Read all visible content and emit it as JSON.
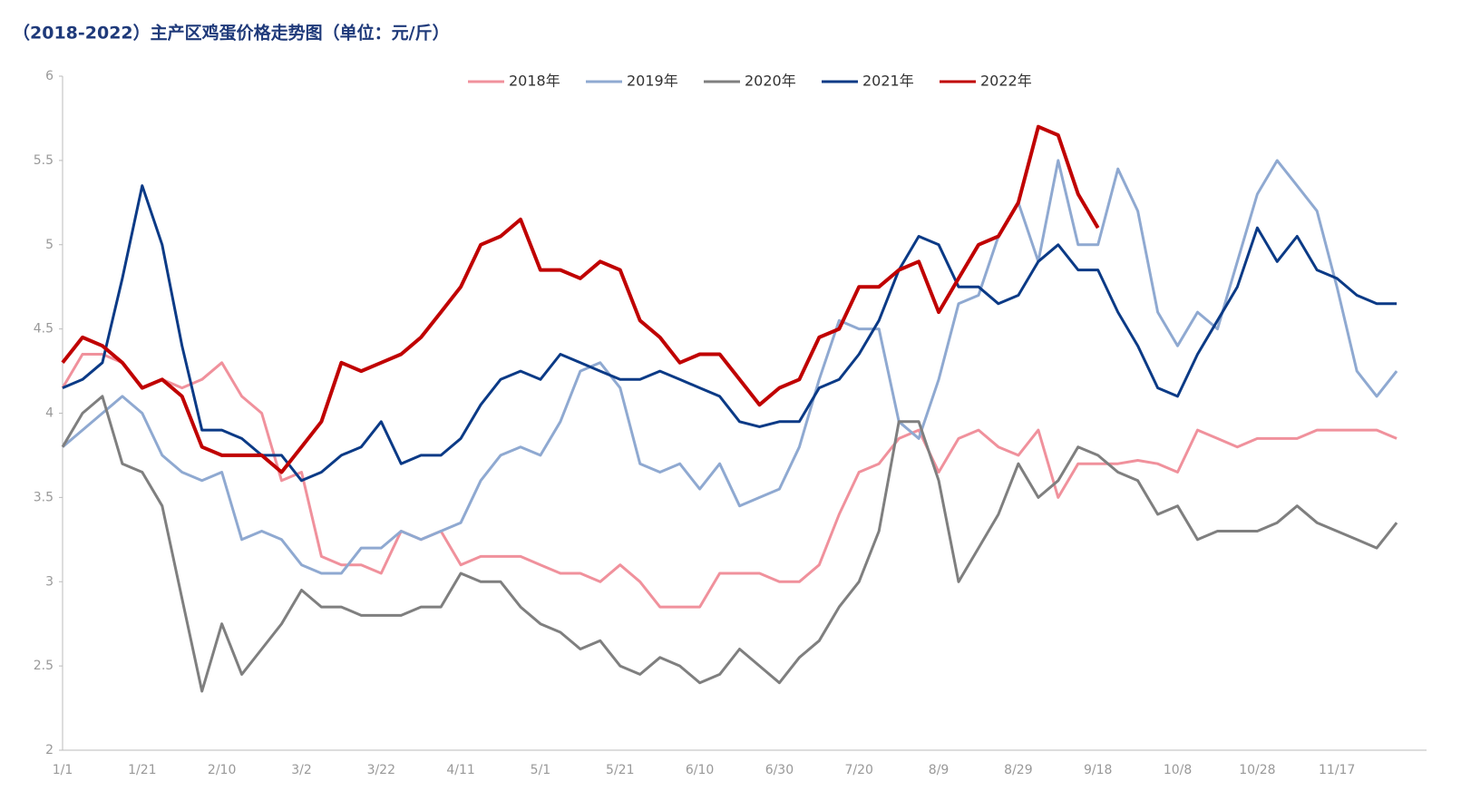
{
  "chart_data": {
    "type": "line",
    "title": "（2018-2022）主产区鸡蛋价格走势图（单位：元/斤）",
    "categories": [
      "1/1",
      null,
      null,
      null,
      "1/21",
      null,
      null,
      null,
      "2/10",
      null,
      null,
      null,
      "3/2",
      null,
      null,
      null,
      "3/22",
      null,
      null,
      null,
      "4/11",
      null,
      null,
      null,
      "5/1",
      null,
      null,
      null,
      "5/21",
      null,
      null,
      null,
      "6/10",
      null,
      null,
      null,
      "6/30",
      null,
      null,
      null,
      "7/20",
      null,
      null,
      null,
      "8/9",
      null,
      null,
      null,
      "8/29",
      null,
      null,
      null,
      "9/18",
      null,
      null,
      null,
      "10/8",
      null,
      null,
      null,
      "10/28",
      null,
      null,
      null,
      "11/17",
      null,
      null,
      null
    ],
    "ylim": [
      2,
      6
    ],
    "yticks": [
      2,
      2.5,
      3,
      3.5,
      4,
      4.5,
      5,
      5.5,
      6
    ],
    "legend": "top",
    "series": [
      {
        "name": "2018年",
        "color": "#f0919c",
        "values": [
          4.15,
          4.35,
          4.35,
          4.3,
          4.15,
          4.2,
          4.15,
          4.2,
          4.3,
          4.1,
          4.0,
          3.6,
          3.65,
          3.15,
          3.1,
          3.1,
          3.05,
          3.3,
          3.25,
          3.3,
          3.1,
          3.15,
          3.15,
          3.15,
          3.1,
          3.05,
          3.05,
          3.0,
          3.1,
          3.0,
          2.85,
          2.85,
          2.85,
          3.05,
          3.05,
          3.05,
          3.0,
          3.0,
          3.1,
          3.4,
          3.65,
          3.7,
          3.85,
          3.9,
          3.65,
          3.85,
          3.9,
          3.8,
          3.75,
          3.9,
          3.5,
          3.7,
          3.7,
          3.7,
          3.72,
          3.7,
          3.65,
          3.9,
          3.85,
          3.8,
          3.85,
          3.85,
          3.85,
          3.9,
          3.9,
          3.9,
          3.9,
          3.85
        ]
      },
      {
        "name": "2019年",
        "color": "#8fa9d1",
        "values": [
          3.8,
          3.9,
          4.0,
          4.1,
          4.0,
          3.75,
          3.65,
          3.6,
          3.65,
          3.25,
          3.3,
          3.25,
          3.1,
          3.05,
          3.05,
          3.2,
          3.2,
          3.3,
          3.25,
          3.3,
          3.35,
          3.6,
          3.75,
          3.8,
          3.75,
          3.95,
          4.25,
          4.3,
          4.15,
          3.7,
          3.65,
          3.7,
          3.55,
          3.7,
          3.45,
          3.5,
          3.55,
          3.8,
          4.2,
          4.55,
          4.5,
          4.5,
          3.95,
          3.85,
          4.2,
          4.65,
          4.7,
          5.05,
          5.25,
          4.9,
          5.5,
          5.0,
          5.0,
          5.45,
          5.2,
          4.6,
          4.4,
          4.6,
          4.5,
          4.9,
          5.3,
          5.5,
          5.35,
          5.2,
          4.75,
          4.25,
          4.1,
          4.25
        ]
      },
      {
        "name": "2020年",
        "color": "#7f7f7f",
        "values": [
          3.8,
          4.0,
          4.1,
          3.7,
          3.65,
          3.45,
          2.9,
          2.35,
          2.75,
          2.45,
          2.6,
          2.75,
          2.95,
          2.85,
          2.85,
          2.8,
          2.8,
          2.8,
          2.85,
          2.85,
          3.05,
          3.0,
          3.0,
          2.85,
          2.75,
          2.7,
          2.6,
          2.65,
          2.5,
          2.45,
          2.55,
          2.5,
          2.4,
          2.45,
          2.6,
          2.5,
          2.4,
          2.55,
          2.65,
          2.85,
          3.0,
          3.3,
          3.95,
          3.95,
          3.6,
          3.0,
          3.2,
          3.4,
          3.7,
          3.5,
          3.6,
          3.8,
          3.75,
          3.65,
          3.6,
          3.4,
          3.45,
          3.25,
          3.3,
          3.3,
          3.3,
          3.35,
          3.45,
          3.35,
          3.3,
          3.25,
          3.2,
          3.35
        ]
      },
      {
        "name": "2021年",
        "color": "#0b3a86",
        "values": [
          4.15,
          4.2,
          4.3,
          4.8,
          5.35,
          5.0,
          4.4,
          3.9,
          3.9,
          3.85,
          3.75,
          3.75,
          3.6,
          3.65,
          3.75,
          3.8,
          3.95,
          3.7,
          3.75,
          3.75,
          3.85,
          4.05,
          4.2,
          4.25,
          4.2,
          4.35,
          4.3,
          4.25,
          4.2,
          4.2,
          4.25,
          4.2,
          4.15,
          4.1,
          3.95,
          3.92,
          3.95,
          3.95,
          4.15,
          4.2,
          4.35,
          4.55,
          4.85,
          5.05,
          5.0,
          4.75,
          4.75,
          4.65,
          4.7,
          4.9,
          5.0,
          4.85,
          4.85,
          4.6,
          4.4,
          4.15,
          4.1,
          4.35,
          4.55,
          4.75,
          5.1,
          4.9,
          5.05,
          4.85,
          4.8,
          4.7,
          4.65,
          4.65
        ]
      },
      {
        "name": "2022年",
        "color": "#c00000",
        "values": [
          4.3,
          4.45,
          4.4,
          4.3,
          4.15,
          4.2,
          4.1,
          3.8,
          3.75,
          3.75,
          3.75,
          3.65,
          3.8,
          3.95,
          4.3,
          4.25,
          4.3,
          4.35,
          4.45,
          4.6,
          4.75,
          5.0,
          5.05,
          5.15,
          4.85,
          4.85,
          4.8,
          4.9,
          4.85,
          4.55,
          4.45,
          4.3,
          4.35,
          4.35,
          4.2,
          4.05,
          4.15,
          4.2,
          4.45,
          4.5,
          4.75,
          4.75,
          4.85,
          4.9,
          4.6,
          4.8,
          5.0,
          5.05,
          5.25,
          5.7,
          5.65,
          5.3,
          5.1,
          null,
          null,
          null,
          null,
          null,
          null,
          null,
          null,
          null,
          null,
          null,
          null,
          null,
          null,
          null
        ]
      }
    ]
  }
}
